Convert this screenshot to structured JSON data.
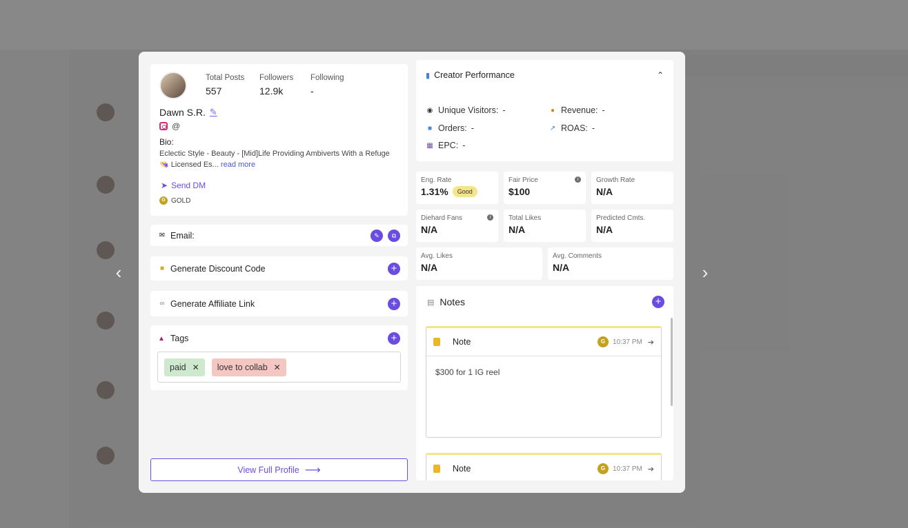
{
  "profile": {
    "stats": [
      {
        "label": "Total Posts",
        "value": "557"
      },
      {
        "label": "Followers",
        "value": "12.9k"
      },
      {
        "label": "Following",
        "value": "-"
      }
    ],
    "name": "Dawn S.R.",
    "handle_prefix": "@",
    "bio_label": "Bio:",
    "bio_text": "Eclectic Style - Beauty - [Mid]Life Providing Ambiverts With a Refuge 👒 Licensed Es...",
    "read_more": "read more",
    "send_dm": "Send DM",
    "tier": "GOLD",
    "tier_initial": "G"
  },
  "email": {
    "label": "Email:"
  },
  "discount": {
    "label": "Generate Discount Code"
  },
  "affiliate": {
    "label": "Generate Affiliate Link"
  },
  "tags": {
    "label": "Tags",
    "items": [
      "paid",
      "love to collab"
    ]
  },
  "view_profile": "View Full Profile",
  "performance": {
    "title": "Creator Performance",
    "items": [
      {
        "label": "Unique Visitors:",
        "value": "-"
      },
      {
        "label": "Revenue:",
        "value": "-"
      },
      {
        "label": "Orders:",
        "value": "-"
      },
      {
        "label": "ROAS:",
        "value": "-"
      },
      {
        "label": "EPC:",
        "value": "-"
      }
    ]
  },
  "metrics": {
    "eng_rate": {
      "label": "Eng. Rate",
      "value": "1.31%",
      "badge": "Good"
    },
    "fair_price": {
      "label": "Fair Price",
      "value": "$100"
    },
    "growth_rate": {
      "label": "Growth Rate",
      "value": "N/A"
    },
    "diehard_fans": {
      "label": "Diehard Fans",
      "value": "N/A"
    },
    "total_likes": {
      "label": "Total Likes",
      "value": "N/A"
    },
    "predicted_cmts": {
      "label": "Predicted Cmts.",
      "value": "N/A"
    },
    "avg_likes": {
      "label": "Avg. Likes",
      "value": "N/A"
    },
    "avg_comments": {
      "label": "Avg. Comments",
      "value": "N/A"
    }
  },
  "notes": {
    "title": "Notes",
    "items": [
      {
        "title": "Note",
        "author_initial": "G",
        "time": "10:37 PM",
        "body": "$300 for 1 IG reel"
      },
      {
        "title": "Note",
        "author_initial": "G",
        "time": "10:37 PM",
        "body": ""
      }
    ]
  },
  "colors": {
    "accent": "#6a4de0",
    "gold": "#c4a21f",
    "good": "#f4e58a"
  }
}
